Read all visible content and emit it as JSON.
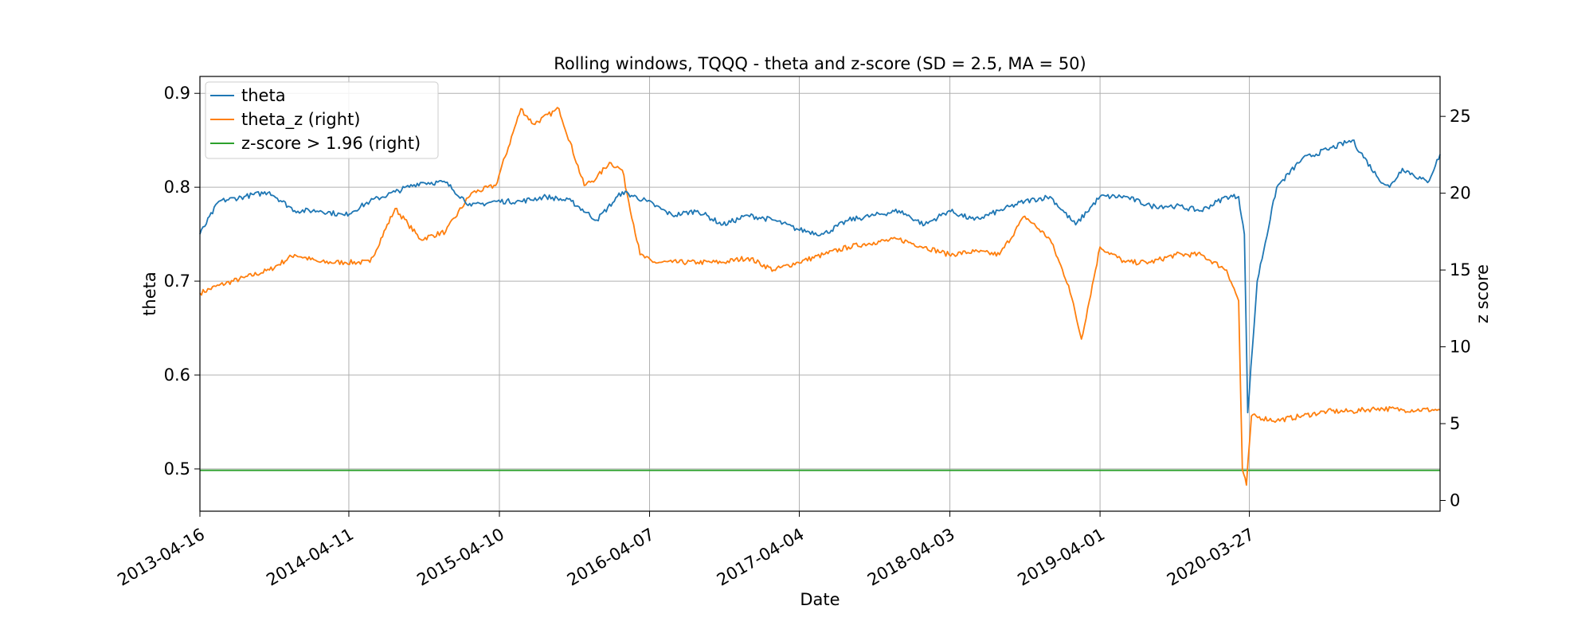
{
  "chart_data": {
    "type": "line",
    "title": "Rolling windows, TQQQ - theta and z-score (SD = 2.5, MA = 50)",
    "xlabel": "Date",
    "ylabel": "theta",
    "ylabel_right": "z score",
    "x_range": [
      "2013-04-16",
      "2021-07-01"
    ],
    "ylim": [
      0.455,
      0.918
    ],
    "ylim_right": [
      -0.7,
      27.6
    ],
    "grid": true,
    "legend_position": "upper-left",
    "x_ticks": [
      "2013-04-16",
      "2014-04-11",
      "2015-04-10",
      "2016-04-07",
      "2017-04-04",
      "2018-04-03",
      "2019-04-01",
      "2020-03-27"
    ],
    "y_ticks": [
      "0.5",
      "0.6",
      "0.7",
      "0.8",
      "0.9"
    ],
    "y_ticks_right": [
      "0",
      "5",
      "10",
      "15",
      "20",
      "25"
    ],
    "series": [
      {
        "name": "theta",
        "axis": "left",
        "color": "#1f77b4",
        "x": [
          "2013-04-16",
          "2013-06-01",
          "2013-08-01",
          "2013-10-01",
          "2013-12-01",
          "2014-02-01",
          "2014-04-01",
          "2014-06-01",
          "2014-08-01",
          "2014-10-01",
          "2014-12-01",
          "2015-02-01",
          "2015-04-01",
          "2015-06-01",
          "2015-08-01",
          "2015-10-01",
          "2015-12-01",
          "2016-02-01",
          "2016-04-01",
          "2016-06-01",
          "2016-08-01",
          "2016-10-01",
          "2016-12-01",
          "2017-02-01",
          "2017-04-01",
          "2017-06-01",
          "2017-08-01",
          "2017-10-01",
          "2017-12-01",
          "2018-02-01",
          "2018-04-01",
          "2018-06-01",
          "2018-08-01",
          "2018-10-01",
          "2018-12-01",
          "2019-02-01",
          "2019-04-01",
          "2019-06-01",
          "2019-08-01",
          "2019-10-01",
          "2019-12-01",
          "2020-02-01",
          "2020-03-01",
          "2020-03-15",
          "2020-03-23",
          "2020-04-15",
          "2020-06-01",
          "2020-08-01",
          "2020-10-01",
          "2020-12-01",
          "2021-02-01",
          "2021-03-01",
          "2021-04-01",
          "2021-06-01",
          "2021-07-01"
        ],
        "values": [
          0.75,
          0.785,
          0.79,
          0.795,
          0.775,
          0.775,
          0.77,
          0.785,
          0.795,
          0.805,
          0.805,
          0.78,
          0.785,
          0.785,
          0.79,
          0.785,
          0.765,
          0.795,
          0.785,
          0.77,
          0.775,
          0.76,
          0.77,
          0.765,
          0.755,
          0.75,
          0.765,
          0.77,
          0.775,
          0.76,
          0.775,
          0.765,
          0.775,
          0.785,
          0.79,
          0.76,
          0.79,
          0.79,
          0.78,
          0.78,
          0.775,
          0.79,
          0.79,
          0.75,
          0.56,
          0.7,
          0.8,
          0.83,
          0.84,
          0.85,
          0.81,
          0.8,
          0.82,
          0.805,
          0.835
        ]
      },
      {
        "name": "theta_z (right)",
        "axis": "right",
        "color": "#ff7f0e",
        "x": [
          "2013-04-16",
          "2013-06-01",
          "2013-08-01",
          "2013-10-01",
          "2013-12-01",
          "2014-02-01",
          "2014-04-01",
          "2014-06-01",
          "2014-08-01",
          "2014-09-01",
          "2014-10-01",
          "2014-12-01",
          "2015-02-01",
          "2015-04-01",
          "2015-06-01",
          "2015-07-01",
          "2015-09-01",
          "2015-11-01",
          "2015-12-01",
          "2016-01-01",
          "2016-02-01",
          "2016-03-15",
          "2016-04-15",
          "2016-06-01",
          "2016-08-01",
          "2016-10-01",
          "2016-12-01",
          "2017-02-01",
          "2017-04-01",
          "2017-06-01",
          "2017-08-01",
          "2017-10-01",
          "2017-12-01",
          "2018-02-01",
          "2018-04-01",
          "2018-06-01",
          "2018-08-01",
          "2018-10-01",
          "2018-12-01",
          "2019-01-15",
          "2019-02-15",
          "2019-04-01",
          "2019-06-01",
          "2019-08-01",
          "2019-10-01",
          "2019-12-01",
          "2020-02-01",
          "2020-03-01",
          "2020-03-10",
          "2020-03-20",
          "2020-04-01",
          "2020-06-01",
          "2020-08-01",
          "2020-10-01",
          "2020-12-01",
          "2021-02-01",
          "2021-04-01",
          "2021-07-01"
        ],
        "values": [
          13.5,
          14,
          14.5,
          15,
          16,
          15.5,
          15.5,
          15.5,
          19,
          18,
          17,
          17.5,
          20,
          20.5,
          25.5,
          24.5,
          25.5,
          20.5,
          21,
          22,
          21.5,
          16,
          15.5,
          15.5,
          15.5,
          15.5,
          15.8,
          15,
          15.5,
          16,
          16.5,
          16.8,
          17,
          16.5,
          16,
          16.2,
          16,
          18.5,
          17,
          14,
          10.5,
          16.5,
          15.5,
          15.5,
          16,
          16,
          15,
          13,
          2,
          1,
          5.5,
          5.2,
          5.5,
          5.8,
          5.8,
          6,
          5.9,
          5.9
        ]
      },
      {
        "name": "z-score > 1.96 (right)",
        "axis": "right",
        "color": "#2ca02c",
        "x": [
          "2013-04-16",
          "2021-07-01"
        ],
        "values": [
          1.96,
          1.96
        ]
      }
    ]
  }
}
